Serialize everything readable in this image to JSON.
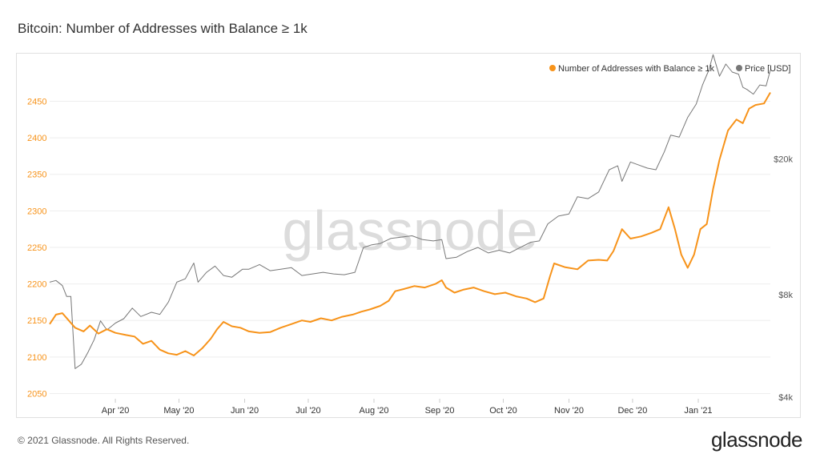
{
  "page": {
    "title": "Bitcoin: Number of Addresses with Balance ≥ 1k",
    "copyright": "© 2021 Glassnode. All Rights Reserved.",
    "brand": "glassnode",
    "watermark": "glassnode"
  },
  "colors": {
    "addresses": "#f7931a",
    "price": "#777777",
    "grid": "#eeeeee"
  },
  "chart_data": {
    "type": "line",
    "title": "Bitcoin: Number of Addresses with Balance ≥ 1k",
    "grid": true,
    "legend_position": "top-right",
    "x_tick_labels": [
      "Apr '20",
      "May '20",
      "Jun '20",
      "Jul '20",
      "Aug '20",
      "Sep '20",
      "Oct '20",
      "Nov '20",
      "Dec '20",
      "Jan '21"
    ],
    "y_left": {
      "ticks": [
        2050,
        2100,
        2150,
        2200,
        2250,
        2300,
        2350,
        2400,
        2450
      ],
      "range": [
        2045,
        2490
      ]
    },
    "y_right": {
      "scale": "log",
      "tick_labels": [
        "$4k",
        "$8k",
        "$20k"
      ],
      "tick_values": [
        4000,
        8000,
        20000
      ],
      "range": [
        4000,
        36000
      ]
    },
    "series": [
      {
        "name": "Number of Addresses with Balance ≥ 1k",
        "axis": "left",
        "color": "#f7931a",
        "points": [
          [
            "2020-03-01",
            2145
          ],
          [
            "2020-03-04",
            2158
          ],
          [
            "2020-03-07",
            2160
          ],
          [
            "2020-03-10",
            2150
          ],
          [
            "2020-03-13",
            2140
          ],
          [
            "2020-03-17",
            2135
          ],
          [
            "2020-03-20",
            2143
          ],
          [
            "2020-03-24",
            2132
          ],
          [
            "2020-03-28",
            2138
          ],
          [
            "2020-04-01",
            2133
          ],
          [
            "2020-04-06",
            2130
          ],
          [
            "2020-04-10",
            2128
          ],
          [
            "2020-04-14",
            2118
          ],
          [
            "2020-04-18",
            2122
          ],
          [
            "2020-04-22",
            2110
          ],
          [
            "2020-04-26",
            2105
          ],
          [
            "2020-04-30",
            2103
          ],
          [
            "2020-05-04",
            2108
          ],
          [
            "2020-05-08",
            2102
          ],
          [
            "2020-05-12",
            2112
          ],
          [
            "2020-05-16",
            2125
          ],
          [
            "2020-05-19",
            2138
          ],
          [
            "2020-05-22",
            2148
          ],
          [
            "2020-05-26",
            2142
          ],
          [
            "2020-05-30",
            2140
          ],
          [
            "2020-06-03",
            2135
          ],
          [
            "2020-06-08",
            2133
          ],
          [
            "2020-06-13",
            2134
          ],
          [
            "2020-06-18",
            2140
          ],
          [
            "2020-06-23",
            2145
          ],
          [
            "2020-06-28",
            2150
          ],
          [
            "2020-07-02",
            2148
          ],
          [
            "2020-07-07",
            2153
          ],
          [
            "2020-07-12",
            2150
          ],
          [
            "2020-07-17",
            2155
          ],
          [
            "2020-07-22",
            2158
          ],
          [
            "2020-07-26",
            2162
          ],
          [
            "2020-07-30",
            2165
          ],
          [
            "2020-08-04",
            2170
          ],
          [
            "2020-08-08",
            2177
          ],
          [
            "2020-08-11",
            2190
          ],
          [
            "2020-08-15",
            2193
          ],
          [
            "2020-08-20",
            2197
          ],
          [
            "2020-08-25",
            2195
          ],
          [
            "2020-08-30",
            2200
          ],
          [
            "2020-09-02",
            2205
          ],
          [
            "2020-09-04",
            2195
          ],
          [
            "2020-09-08",
            2188
          ],
          [
            "2020-09-12",
            2192
          ],
          [
            "2020-09-17",
            2195
          ],
          [
            "2020-09-22",
            2190
          ],
          [
            "2020-09-27",
            2186
          ],
          [
            "2020-10-02",
            2188
          ],
          [
            "2020-10-07",
            2183
          ],
          [
            "2020-10-12",
            2180
          ],
          [
            "2020-10-16",
            2175
          ],
          [
            "2020-10-20",
            2180
          ],
          [
            "2020-10-23",
            2210
          ],
          [
            "2020-10-25",
            2228
          ],
          [
            "2020-10-30",
            2223
          ],
          [
            "2020-11-05",
            2220
          ],
          [
            "2020-11-10",
            2232
          ],
          [
            "2020-11-15",
            2233
          ],
          [
            "2020-11-19",
            2232
          ],
          [
            "2020-11-22",
            2245
          ],
          [
            "2020-11-26",
            2275
          ],
          [
            "2020-11-30",
            2262
          ],
          [
            "2020-12-05",
            2265
          ],
          [
            "2020-12-10",
            2270
          ],
          [
            "2020-12-14",
            2275
          ],
          [
            "2020-12-18",
            2305
          ],
          [
            "2020-12-21",
            2275
          ],
          [
            "2020-12-24",
            2240
          ],
          [
            "2020-12-27",
            2222
          ],
          [
            "2020-12-30",
            2240
          ],
          [
            "2021-01-02",
            2275
          ],
          [
            "2021-01-05",
            2282
          ],
          [
            "2021-01-08",
            2330
          ],
          [
            "2021-01-11",
            2370
          ],
          [
            "2021-01-15",
            2410
          ],
          [
            "2021-01-19",
            2425
          ],
          [
            "2021-01-22",
            2420
          ],
          [
            "2021-01-25",
            2440
          ],
          [
            "2021-01-28",
            2445
          ],
          [
            "2021-02-01",
            2447
          ],
          [
            "2021-02-04",
            2462
          ]
        ]
      },
      {
        "name": "Price [USD]",
        "axis": "right",
        "color": "#777777",
        "points": [
          [
            "2020-03-01",
            8700
          ],
          [
            "2020-03-04",
            8800
          ],
          [
            "2020-03-07",
            8500
          ],
          [
            "2020-03-09",
            7900
          ],
          [
            "2020-03-11",
            7900
          ],
          [
            "2020-03-13",
            4850
          ],
          [
            "2020-03-16",
            5000
          ],
          [
            "2020-03-19",
            5400
          ],
          [
            "2020-03-22",
            5900
          ],
          [
            "2020-03-25",
            6700
          ],
          [
            "2020-03-28",
            6300
          ],
          [
            "2020-04-01",
            6600
          ],
          [
            "2020-04-05",
            6800
          ],
          [
            "2020-04-09",
            7300
          ],
          [
            "2020-04-13",
            6900
          ],
          [
            "2020-04-18",
            7100
          ],
          [
            "2020-04-22",
            7000
          ],
          [
            "2020-04-26",
            7600
          ],
          [
            "2020-04-30",
            8700
          ],
          [
            "2020-05-04",
            8900
          ],
          [
            "2020-05-08",
            9900
          ],
          [
            "2020-05-10",
            8700
          ],
          [
            "2020-05-14",
            9300
          ],
          [
            "2020-05-18",
            9700
          ],
          [
            "2020-05-22",
            9100
          ],
          [
            "2020-05-26",
            9000
          ],
          [
            "2020-05-31",
            9500
          ],
          [
            "2020-06-03",
            9500
          ],
          [
            "2020-06-08",
            9800
          ],
          [
            "2020-06-13",
            9400
          ],
          [
            "2020-06-18",
            9500
          ],
          [
            "2020-06-23",
            9600
          ],
          [
            "2020-06-28",
            9100
          ],
          [
            "2020-07-03",
            9200
          ],
          [
            "2020-07-08",
            9300
          ],
          [
            "2020-07-13",
            9200
          ],
          [
            "2020-07-18",
            9150
          ],
          [
            "2020-07-23",
            9300
          ],
          [
            "2020-07-27",
            11000
          ],
          [
            "2020-07-31",
            11200
          ],
          [
            "2020-08-04",
            11300
          ],
          [
            "2020-08-09",
            11700
          ],
          [
            "2020-08-14",
            11800
          ],
          [
            "2020-08-19",
            11900
          ],
          [
            "2020-08-24",
            11600
          ],
          [
            "2020-08-29",
            11500
          ],
          [
            "2020-09-02",
            11600
          ],
          [
            "2020-09-04",
            10200
          ],
          [
            "2020-09-09",
            10300
          ],
          [
            "2020-09-14",
            10700
          ],
          [
            "2020-09-19",
            11000
          ],
          [
            "2020-09-24",
            10600
          ],
          [
            "2020-09-29",
            10800
          ],
          [
            "2020-10-04",
            10600
          ],
          [
            "2020-10-09",
            11000
          ],
          [
            "2020-10-14",
            11400
          ],
          [
            "2020-10-18",
            11500
          ],
          [
            "2020-10-22",
            12900
          ],
          [
            "2020-10-27",
            13600
          ],
          [
            "2020-11-01",
            13800
          ],
          [
            "2020-11-05",
            15500
          ],
          [
            "2020-11-10",
            15300
          ],
          [
            "2020-11-15",
            16000
          ],
          [
            "2020-11-20",
            18600
          ],
          [
            "2020-11-24",
            19100
          ],
          [
            "2020-11-26",
            17200
          ],
          [
            "2020-11-30",
            19600
          ],
          [
            "2020-12-04",
            19200
          ],
          [
            "2020-12-08",
            18800
          ],
          [
            "2020-12-12",
            18600
          ],
          [
            "2020-12-16",
            21000
          ],
          [
            "2020-12-19",
            23500
          ],
          [
            "2020-12-23",
            23200
          ],
          [
            "2020-12-27",
            26500
          ],
          [
            "2020-12-31",
            29000
          ],
          [
            "2021-01-03",
            33000
          ],
          [
            "2021-01-06",
            36500
          ],
          [
            "2021-01-08",
            40500
          ],
          [
            "2021-01-11",
            35000
          ],
          [
            "2021-01-14",
            38000
          ],
          [
            "2021-01-17",
            36000
          ],
          [
            "2021-01-20",
            35500
          ],
          [
            "2021-01-22",
            32500
          ],
          [
            "2021-01-24",
            32000
          ],
          [
            "2021-01-27",
            31000
          ],
          [
            "2021-01-30",
            33000
          ],
          [
            "2021-02-02",
            32800
          ],
          [
            "2021-02-04",
            36500
          ]
        ]
      }
    ]
  }
}
